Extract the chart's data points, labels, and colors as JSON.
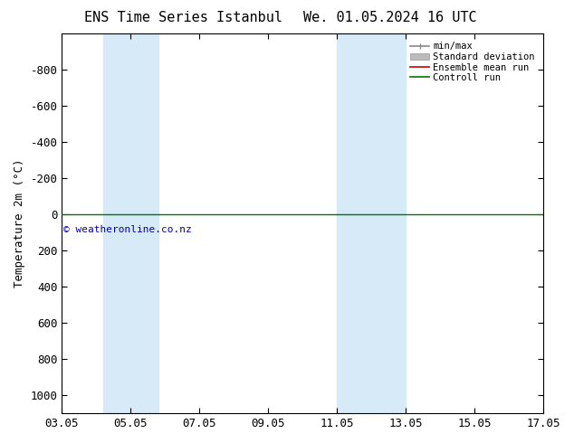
{
  "title_left": "ENS Time Series Istanbul",
  "title_right": "We. 01.05.2024 16 UTC",
  "ylabel": "Temperature 2m (°C)",
  "ylim_top": -1000,
  "ylim_bottom": 1100,
  "yticks": [
    -800,
    -600,
    -400,
    -200,
    0,
    200,
    400,
    600,
    800,
    1000
  ],
  "xtick_labels": [
    "03.05",
    "05.05",
    "07.05",
    "09.05",
    "11.05",
    "13.05",
    "15.05",
    "17.05"
  ],
  "xtick_positions": [
    3,
    5,
    7,
    9,
    11,
    13,
    15,
    17
  ],
  "xlim": [
    3,
    17
  ],
  "shaded_regions": [
    {
      "xmin": 4.2,
      "xmax": 5.8,
      "color": "#d6eaf8",
      "alpha": 1.0
    },
    {
      "xmin": 11.0,
      "xmax": 13.0,
      "color": "#d6eaf8",
      "alpha": 1.0
    }
  ],
  "control_run_y": 0,
  "control_run_color": "#007700",
  "ensemble_mean_color": "#cc0000",
  "minmax_color": "#888888",
  "std_dev_color": "#bbbbbb",
  "copyright_text": "© weatheronline.co.nz",
  "copyright_color": "#0000cc",
  "background_color": "#ffffff",
  "legend_items": [
    "min/max",
    "Standard deviation",
    "Ensemble mean run",
    "Controll run"
  ],
  "legend_colors": [
    "#888888",
    "#bbbbbb",
    "#cc0000",
    "#007700"
  ],
  "title_fontsize": 11,
  "axis_fontsize": 9,
  "tick_fontsize": 9
}
